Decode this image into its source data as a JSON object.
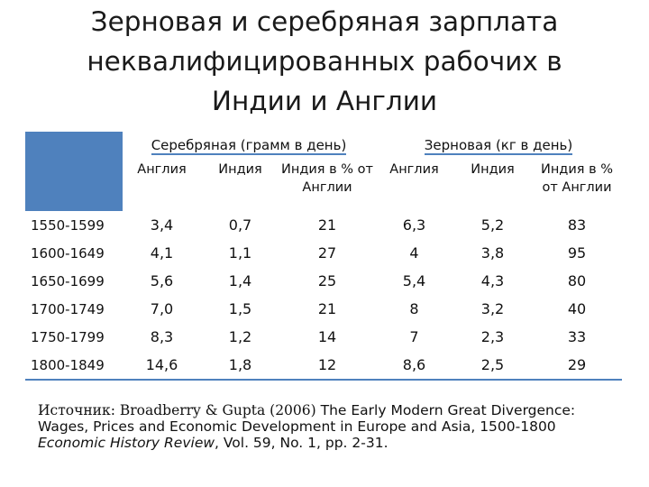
{
  "title": {
    "line1": "Зерновая и серебряная зарплата",
    "line2": "неквалифицированных рабочих в",
    "line3": "Индии и Англии"
  },
  "table": {
    "group_silver": "Серебряная (грамм в день)",
    "group_grain": "Зерновая (кг в день)",
    "subheaders": [
      "Англия",
      "Индия",
      "Индия в % от Англии",
      "Англия",
      "Индия",
      "Индия в % от Англии"
    ],
    "rows": [
      {
        "period": "1550-1599",
        "cells": [
          "3,4",
          "0,7",
          "21",
          "6,3",
          "5,2",
          "83"
        ]
      },
      {
        "period": "1600-1649",
        "cells": [
          "4,1",
          "1,1",
          "27",
          "4",
          "3,8",
          "95"
        ]
      },
      {
        "period": "1650-1699",
        "cells": [
          "5,6",
          "1,4",
          "25",
          "5,4",
          "4,3",
          "80"
        ]
      },
      {
        "period": "1700-1749",
        "cells": [
          "7,0",
          "1,5",
          "21",
          "8",
          "3,2",
          "40"
        ]
      },
      {
        "period": "1750-1799",
        "cells": [
          "8,3",
          "1,2",
          "14",
          "7",
          "2,3",
          "33"
        ]
      },
      {
        "period": "1800-1849",
        "cells": [
          "14,6",
          "1,8",
          "12",
          "8,6",
          "2,5",
          "29"
        ]
      }
    ]
  },
  "source": {
    "prefix": "Источник: Broadberry & Gupta (2006)",
    "rest1": " The Early Modern Great Divergence:",
    "line2": "Wages, Prices and Economic Development in Europe and Asia, 1500-1800",
    "journal": "Economic History Review",
    "line3_rest": ", Vol. 59, No. 1, pp. 2-31."
  },
  "colors": {
    "header_blue": "#4f81bd"
  }
}
